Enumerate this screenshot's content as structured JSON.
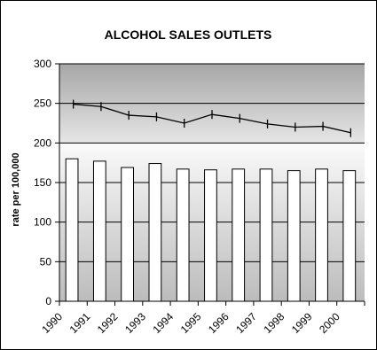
{
  "chart_data": {
    "type": "bar",
    "title": "ALCOHOL SALES OUTLETS",
    "xlabel": "",
    "ylabel": "rate per 100,000",
    "categories": [
      "1990",
      "1991",
      "1992",
      "1993",
      "1994",
      "1995",
      "1996",
      "1997",
      "1998",
      "1999",
      "2000"
    ],
    "ylim": [
      0,
      300
    ],
    "yticks": [
      0,
      50,
      100,
      150,
      200,
      250,
      300
    ],
    "grid": true,
    "series": [
      {
        "type": "bar",
        "values": [
          180,
          177,
          169,
          174,
          167,
          166,
          167,
          167,
          165,
          167,
          165
        ]
      },
      {
        "type": "line",
        "values": [
          249,
          246,
          235,
          233,
          225,
          236,
          231,
          224,
          220,
          221,
          213
        ]
      }
    ],
    "colors": {
      "bar_fill": "#ffffff",
      "outline": "#000000",
      "band_top": "#a6a6a6",
      "band_bottom": "#f2f2f2"
    }
  }
}
